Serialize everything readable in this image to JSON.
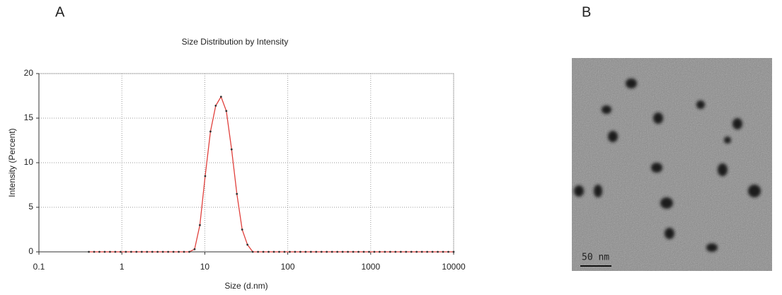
{
  "panels": {
    "a_label": "A",
    "b_label": "B",
    "scale_bar": "50 nm"
  },
  "chart_data": {
    "type": "line",
    "title": "Size Distribution by Intensity",
    "x_label": "Size (d.nm)",
    "y_label": "Intensity (Percent)",
    "x": [
      0.4,
      0.463,
      0.536,
      0.621,
      0.719,
      0.833,
      0.965,
      1.117,
      1.294,
      1.499,
      1.736,
      2.01,
      2.328,
      2.696,
      3.122,
      3.615,
      4.187,
      4.849,
      5.615,
      6.503,
      7.531,
      8.721,
      10.1,
      11.7,
      13.54,
      15.69,
      18.17,
      21.04,
      24.36,
      28.21,
      32.67,
      37.84,
      43.82,
      50.75,
      58.77,
      68.06,
      78.82,
      91.28,
      105.7,
      122.4,
      141.8,
      164.2,
      190.1,
      220.2,
      255,
      295.3,
      342,
      396.1,
      458.7,
      531.2,
      615.1,
      712.4,
      825,
      955.4,
      1106,
      1281,
      1484,
      1718,
      1990,
      2305,
      2669,
      3091,
      3580,
      4145,
      4801,
      5560,
      6439,
      7456,
      8635,
      10000
    ],
    "values": [
      0,
      0,
      0,
      0,
      0,
      0,
      0,
      0,
      0,
      0,
      0,
      0,
      0,
      0,
      0,
      0,
      0,
      0,
      0,
      0,
      0.3,
      3,
      8.5,
      13.5,
      16.4,
      17.4,
      15.8,
      11.5,
      6.5,
      2.5,
      0.8,
      0,
      0,
      0,
      0,
      0,
      0,
      0,
      0,
      0,
      0,
      0,
      0,
      0,
      0,
      0,
      0,
      0,
      0,
      0,
      0,
      0,
      0,
      0,
      0,
      0,
      0,
      0,
      0,
      0,
      0,
      0,
      0,
      0,
      0,
      0,
      0,
      0,
      0,
      0
    ],
    "color": "#e0403c",
    "marker_color": "#333333",
    "x_log": true,
    "xlim": [
      0.1,
      10000
    ],
    "xticks": [
      0.1,
      1,
      10,
      100,
      1000,
      10000
    ],
    "ylim": [
      0,
      20
    ],
    "yticks": [
      0,
      5,
      10,
      15,
      20
    ],
    "grid": true
  }
}
